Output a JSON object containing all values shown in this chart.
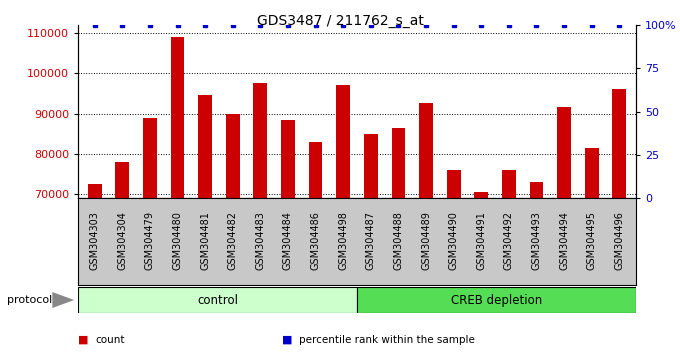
{
  "title": "GDS3487 / 211762_s_at",
  "categories": [
    "GSM304303",
    "GSM304304",
    "GSM304479",
    "GSM304480",
    "GSM304481",
    "GSM304482",
    "GSM304483",
    "GSM304484",
    "GSM304486",
    "GSM304498",
    "GSM304487",
    "GSM304488",
    "GSM304489",
    "GSM304490",
    "GSM304491",
    "GSM304492",
    "GSM304493",
    "GSM304494",
    "GSM304495",
    "GSM304496"
  ],
  "counts": [
    72500,
    78000,
    89000,
    109000,
    94500,
    90000,
    97500,
    88500,
    83000,
    97000,
    85000,
    86500,
    92500,
    76000,
    70500,
    76000,
    73000,
    91500,
    81500,
    96000
  ],
  "bar_color": "#cc0000",
  "percentile_color": "#0000cc",
  "ylim_left": [
    69000,
    112000
  ],
  "ylim_right": [
    0,
    100
  ],
  "yticks_left": [
    70000,
    80000,
    90000,
    100000,
    110000
  ],
  "yticks_right": [
    0,
    25,
    50,
    75,
    100
  ],
  "yticklabels_right": [
    "0",
    "25",
    "50",
    "75",
    "100%"
  ],
  "control_count": 10,
  "protocol_label": "protocol",
  "group_labels": [
    "control",
    "CREB depletion"
  ],
  "group_colors": [
    "#ccffcc",
    "#55dd55"
  ],
  "legend_items": [
    {
      "label": "count",
      "color": "#cc0000"
    },
    {
      "label": "percentile rank within the sample",
      "color": "#0000cc"
    }
  ],
  "background_color": "#ffffff",
  "bar_width": 0.5,
  "tick_label_fontsize": 7,
  "title_fontsize": 10,
  "xtick_bg_color": "#c8c8c8"
}
